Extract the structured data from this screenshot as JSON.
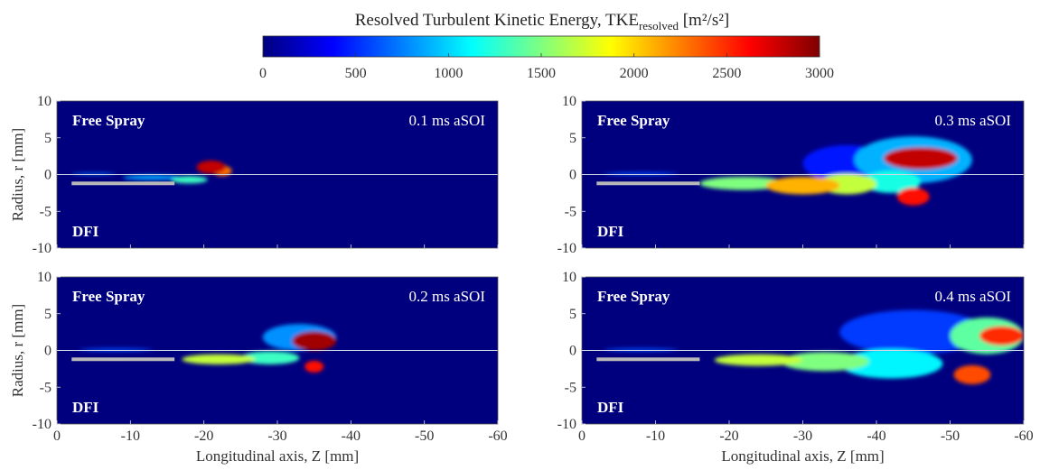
{
  "colorbar": {
    "title_main": "Resolved Turbulent Kinetic Energy, TKE",
    "title_sub": "resolved",
    "title_units": "[m²/s²]",
    "ticks": [
      "0",
      "500",
      "1000",
      "1500",
      "2000",
      "2500",
      "3000"
    ],
    "range": [
      0,
      3000
    ],
    "colormap": "jet",
    "colors": [
      "#00007f",
      "#0000ff",
      "#007fff",
      "#00ffff",
      "#7fff7f",
      "#ffff00",
      "#ff7f00",
      "#ff0000",
      "#7f0000"
    ]
  },
  "chart_data": [
    {
      "type": "heatmap",
      "label_top": "Free Spray",
      "label_bottom": "DFI",
      "time_label": "0.1 ms aSOI",
      "xlabel": "",
      "ylabel": "Radius, r [mm]",
      "xlim": [
        0,
        -60
      ],
      "ylim": [
        -10,
        10
      ],
      "xticks": [
        "0",
        "-10",
        "-20",
        "-30",
        "-40",
        "-50",
        "-60"
      ],
      "yticks": [
        "10",
        "5",
        "0",
        "-5",
        "-10"
      ],
      "blobs": [
        {
          "x": -5,
          "y": 0.1,
          "rx": 3,
          "ry": 0.15,
          "v": 700
        },
        {
          "x": -13,
          "y": -0.4,
          "rx": 4,
          "ry": 0.35,
          "v": 850
        },
        {
          "x": -18,
          "y": -0.7,
          "rx": 2.5,
          "ry": 0.5,
          "v": 1300
        },
        {
          "x": -21,
          "y": 1.0,
          "rx": 2.0,
          "ry": 0.9,
          "v": 2800
        },
        {
          "x": -22.5,
          "y": 0.5,
          "rx": 1.3,
          "ry": 0.7,
          "v": 2300
        }
      ]
    },
    {
      "type": "heatmap",
      "label_top": "Free Spray",
      "label_bottom": "DFI",
      "time_label": "0.3 ms aSOI",
      "xlabel": "",
      "ylabel": "",
      "xlim": [
        0,
        -60
      ],
      "ylim": [
        -10,
        10
      ],
      "xticks": [
        "0",
        "-10",
        "-20",
        "-30",
        "-40",
        "-50",
        "-60"
      ],
      "yticks": [
        "10",
        "5",
        "0",
        "-5",
        "-10"
      ],
      "blobs": [
        {
          "x": -8,
          "y": 0.1,
          "rx": 5,
          "ry": 0.2,
          "v": 600
        },
        {
          "x": -22,
          "y": -1.2,
          "rx": 6,
          "ry": 0.9,
          "v": 1500
        },
        {
          "x": -30,
          "y": -1.5,
          "rx": 5,
          "ry": 1.2,
          "v": 2100
        },
        {
          "x": -36,
          "y": -1.3,
          "rx": 4,
          "ry": 1.4,
          "v": 1700
        },
        {
          "x": -36,
          "y": 1.5,
          "rx": 6,
          "ry": 2.5,
          "v": 450
        },
        {
          "x": -45,
          "y": 2.0,
          "rx": 8,
          "ry": 3.2,
          "v": 900
        },
        {
          "x": -46,
          "y": 2.2,
          "rx": 5,
          "ry": 1.5,
          "v": 2800
        },
        {
          "x": -45,
          "y": -3.0,
          "rx": 2.2,
          "ry": 1.2,
          "v": 2600
        },
        {
          "x": -42,
          "y": -1.0,
          "rx": 4,
          "ry": 1.5,
          "v": 1200
        }
      ]
    },
    {
      "type": "heatmap",
      "label_top": "Free Spray",
      "label_bottom": "DFI",
      "time_label": "0.2 ms aSOI",
      "xlabel": "Longitudinal axis, Z [mm]",
      "ylabel": "Radius, r [mm]",
      "xlim": [
        0,
        -60
      ],
      "ylim": [
        -10,
        10
      ],
      "xticks": [
        "0",
        "-10",
        "-20",
        "-30",
        "-40",
        "-50",
        "-60"
      ],
      "yticks": [
        "10",
        "5",
        "0",
        "-5",
        "-10"
      ],
      "blobs": [
        {
          "x": -8,
          "y": 0.1,
          "rx": 5,
          "ry": 0.2,
          "v": 600
        },
        {
          "x": -22,
          "y": -1.2,
          "rx": 5,
          "ry": 0.7,
          "v": 1700
        },
        {
          "x": -29,
          "y": -1.0,
          "rx": 4,
          "ry": 0.9,
          "v": 1300
        },
        {
          "x": -33,
          "y": 1.8,
          "rx": 5,
          "ry": 1.8,
          "v": 800
        },
        {
          "x": -35,
          "y": 1.3,
          "rx": 3,
          "ry": 1.3,
          "v": 2900
        },
        {
          "x": -35,
          "y": -2.2,
          "rx": 1.3,
          "ry": 0.8,
          "v": 2600
        }
      ]
    },
    {
      "type": "heatmap",
      "label_top": "Free Spray",
      "label_bottom": "DFI",
      "time_label": "0.4 ms aSOI",
      "xlabel": "Longitudinal axis, Z [mm]",
      "ylabel": "",
      "xlim": [
        0,
        -60
      ],
      "ylim": [
        -10,
        10
      ],
      "xticks": [
        "0",
        "-10",
        "-20",
        "-30",
        "-40",
        "-50",
        "-60"
      ],
      "yticks": [
        "10",
        "5",
        "0",
        "-5",
        "-10"
      ],
      "blobs": [
        {
          "x": -8,
          "y": 0.1,
          "rx": 5,
          "ry": 0.2,
          "v": 600
        },
        {
          "x": -24,
          "y": -1.3,
          "rx": 6,
          "ry": 0.8,
          "v": 1700
        },
        {
          "x": -33,
          "y": -1.5,
          "rx": 6,
          "ry": 1.3,
          "v": 1500
        },
        {
          "x": -42,
          "y": -1.8,
          "rx": 7,
          "ry": 2.0,
          "v": 1100
        },
        {
          "x": -45,
          "y": 2.5,
          "rx": 10,
          "ry": 3.0,
          "v": 550
        },
        {
          "x": -55,
          "y": 2.0,
          "rx": 5,
          "ry": 2.5,
          "v": 1400
        },
        {
          "x": -57,
          "y": 2.0,
          "rx": 3,
          "ry": 1.3,
          "v": 2500
        },
        {
          "x": -53,
          "y": -3.3,
          "rx": 2.5,
          "ry": 1.3,
          "v": 2400
        }
      ]
    }
  ]
}
